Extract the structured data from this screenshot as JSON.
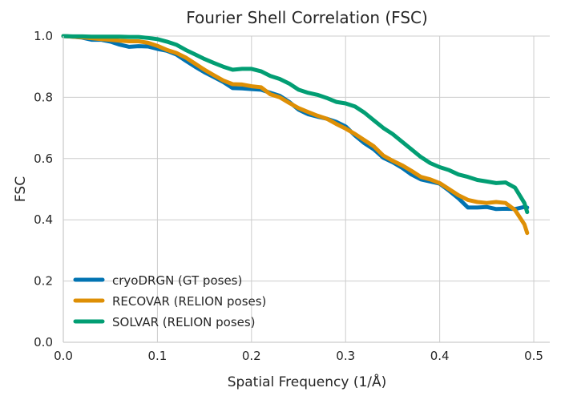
{
  "chart_data": {
    "type": "line",
    "title": "Fourier Shell Correlation (FSC)",
    "xlabel": "Spatial Frequency (1/Å)",
    "ylabel": "FSC",
    "xlim": [
      0,
      0.517
    ],
    "ylim": [
      0,
      1.0
    ],
    "xticks": [
      0.0,
      0.1,
      0.2,
      0.3,
      0.4,
      0.5
    ],
    "xtick_labels": [
      "0.0",
      "0.1",
      "0.2",
      "0.3",
      "0.4",
      "0.5"
    ],
    "yticks": [
      0.0,
      0.2,
      0.4,
      0.6,
      0.8,
      1.0
    ],
    "ytick_labels": [
      "0.0",
      "0.2",
      "0.4",
      "0.6",
      "0.8",
      "1.0"
    ],
    "grid": true,
    "legend_position": "lower-left",
    "x": [
      0,
      0.01,
      0.02,
      0.03,
      0.04,
      0.05,
      0.06,
      0.07,
      0.08,
      0.09,
      0.1,
      0.11,
      0.12,
      0.13,
      0.14,
      0.15,
      0.16,
      0.17,
      0.18,
      0.19,
      0.2,
      0.21,
      0.22,
      0.23,
      0.24,
      0.25,
      0.26,
      0.27,
      0.28,
      0.29,
      0.3,
      0.31,
      0.32,
      0.33,
      0.34,
      0.35,
      0.36,
      0.37,
      0.38,
      0.39,
      0.4,
      0.41,
      0.42,
      0.43,
      0.44,
      0.45,
      0.46,
      0.47,
      0.48,
      0.49,
      0.493
    ],
    "series": [
      {
        "name": "cryoDRGN (GT poses)",
        "color": "#0173b2",
        "values": [
          1.0,
          0.998,
          0.995,
          0.988,
          0.988,
          0.982,
          0.972,
          0.965,
          0.967,
          0.966,
          0.958,
          0.952,
          0.94,
          0.92,
          0.9,
          0.882,
          0.866,
          0.85,
          0.83,
          0.829,
          0.827,
          0.825,
          0.815,
          0.805,
          0.785,
          0.76,
          0.745,
          0.737,
          0.73,
          0.72,
          0.705,
          0.675,
          0.65,
          0.63,
          0.603,
          0.588,
          0.57,
          0.548,
          0.532,
          0.525,
          0.518,
          0.495,
          0.47,
          0.44,
          0.44,
          0.442,
          0.435,
          0.436,
          0.435,
          0.442,
          0.44
        ]
      },
      {
        "name": "RECOVAR (RELION poses)",
        "color": "#de8f05",
        "values": [
          1.0,
          0.998,
          0.996,
          0.993,
          0.99,
          0.988,
          0.985,
          0.983,
          0.983,
          0.978,
          0.968,
          0.955,
          0.945,
          0.93,
          0.91,
          0.89,
          0.872,
          0.855,
          0.843,
          0.842,
          0.836,
          0.833,
          0.81,
          0.8,
          0.782,
          0.765,
          0.752,
          0.74,
          0.73,
          0.713,
          0.698,
          0.68,
          0.66,
          0.64,
          0.61,
          0.593,
          0.578,
          0.56,
          0.54,
          0.532,
          0.52,
          0.5,
          0.48,
          0.465,
          0.458,
          0.455,
          0.458,
          0.455,
          0.432,
          0.385,
          0.357
        ]
      },
      {
        "name": "SOLVAR (RELION poses)",
        "color": "#029e73",
        "values": [
          1.0,
          0.999,
          0.999,
          0.998,
          0.998,
          0.998,
          0.998,
          0.997,
          0.997,
          0.994,
          0.99,
          0.982,
          0.972,
          0.955,
          0.94,
          0.925,
          0.912,
          0.9,
          0.89,
          0.893,
          0.893,
          0.885,
          0.87,
          0.86,
          0.845,
          0.825,
          0.815,
          0.808,
          0.798,
          0.785,
          0.78,
          0.77,
          0.75,
          0.725,
          0.7,
          0.68,
          0.655,
          0.63,
          0.605,
          0.585,
          0.572,
          0.562,
          0.548,
          0.54,
          0.53,
          0.525,
          0.52,
          0.522,
          0.505,
          0.455,
          0.425
        ]
      }
    ]
  }
}
